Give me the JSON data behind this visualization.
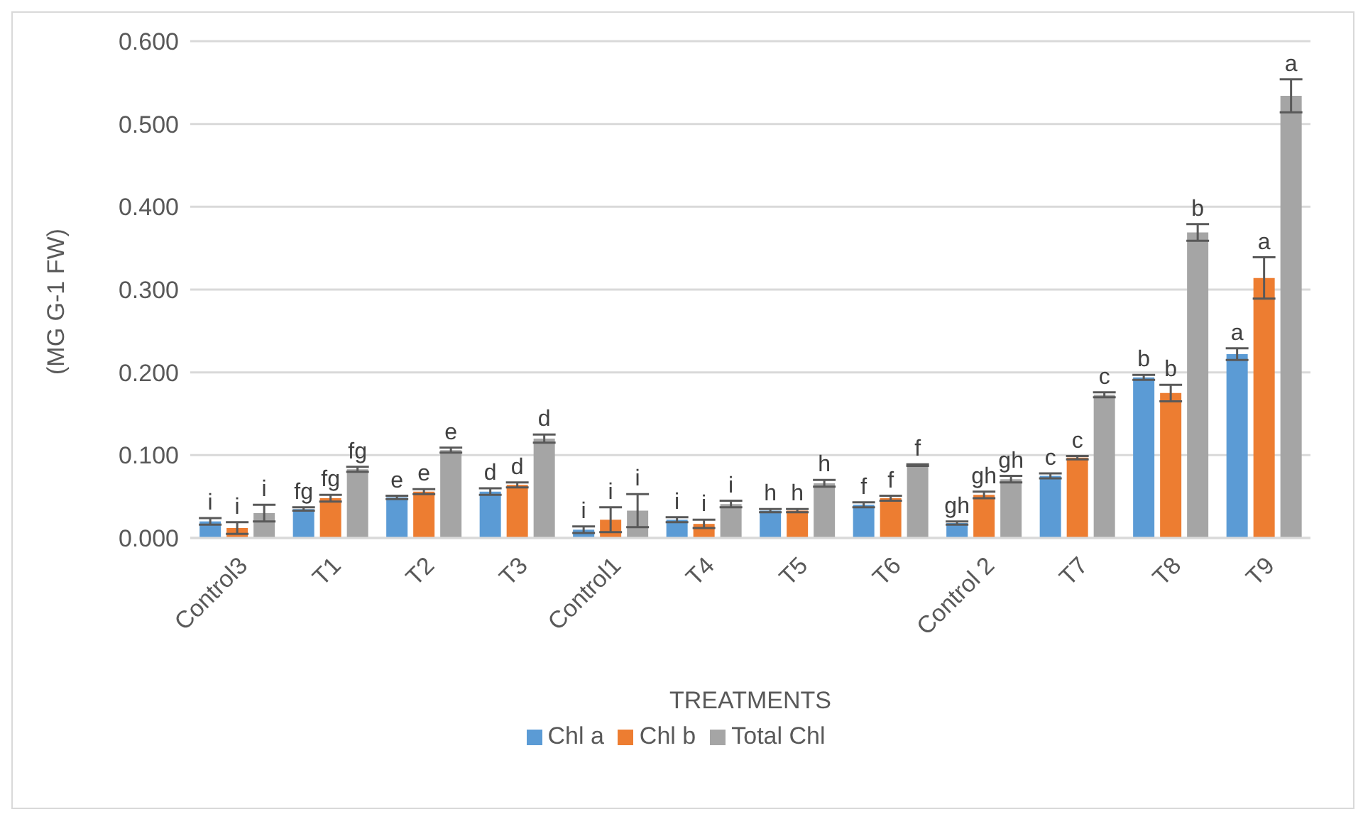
{
  "chart_data": {
    "type": "bar",
    "xlabel": "TREATMENTS",
    "ylabel": "(MG G-1 FW)",
    "categories": [
      "Control3",
      "T1",
      "T2",
      "T3",
      "Control1",
      "T4",
      "T5",
      "T6",
      "Control 2",
      "T7",
      "T8",
      "T9"
    ],
    "series": [
      {
        "name": "Chl a",
        "color": "#5b9bd5",
        "values": [
          0.02,
          0.035,
          0.049,
          0.056,
          0.01,
          0.022,
          0.033,
          0.04,
          0.018,
          0.075,
          0.194,
          0.222
        ],
        "errors": [
          0.004,
          0.002,
          0.002,
          0.004,
          0.004,
          0.003,
          0.002,
          0.003,
          0.002,
          0.003,
          0.003,
          0.007
        ],
        "value_labels": [
          "i",
          "fg",
          "e",
          "d",
          "i",
          "i",
          "h",
          "f",
          "gh",
          "c",
          "b",
          "a"
        ]
      },
      {
        "name": "Chl b",
        "color": "#ed7d31",
        "values": [
          0.012,
          0.048,
          0.056,
          0.064,
          0.022,
          0.017,
          0.033,
          0.048,
          0.052,
          0.097,
          0.175,
          0.314
        ],
        "errors": [
          0.007,
          0.004,
          0.003,
          0.003,
          0.015,
          0.005,
          0.002,
          0.003,
          0.004,
          0.002,
          0.01,
          0.025
        ],
        "value_labels": [
          "i",
          "fg",
          "e",
          "d",
          "i",
          "i",
          "h",
          "f",
          "gh",
          "c",
          "b",
          "a"
        ]
      },
      {
        "name": "Total Chl",
        "color": "#a5a5a5",
        "values": [
          0.03,
          0.083,
          0.106,
          0.12,
          0.033,
          0.041,
          0.066,
          0.088,
          0.071,
          0.173,
          0.369,
          0.534
        ],
        "errors": [
          0.01,
          0.003,
          0.003,
          0.005,
          0.02,
          0.004,
          0.004,
          0.001,
          0.004,
          0.003,
          0.01,
          0.02
        ],
        "value_labels": [
          "i",
          "fg",
          "e",
          "d",
          "i",
          "i",
          "h",
          "f",
          "gh",
          "c",
          "b",
          "a"
        ]
      }
    ],
    "ylim": [
      0,
      0.6
    ],
    "yticks": [
      {
        "value": 0,
        "label": "0.000"
      },
      {
        "value": 0.1,
        "label": "0.100"
      },
      {
        "value": 0.2,
        "label": "0.200"
      },
      {
        "value": 0.3,
        "label": "0.300"
      },
      {
        "value": 0.4,
        "label": "0.400"
      },
      {
        "value": 0.5,
        "label": "0.500"
      },
      {
        "value": 0.6,
        "label": "0.600"
      }
    ],
    "grid": "y",
    "legend": "bottom"
  }
}
